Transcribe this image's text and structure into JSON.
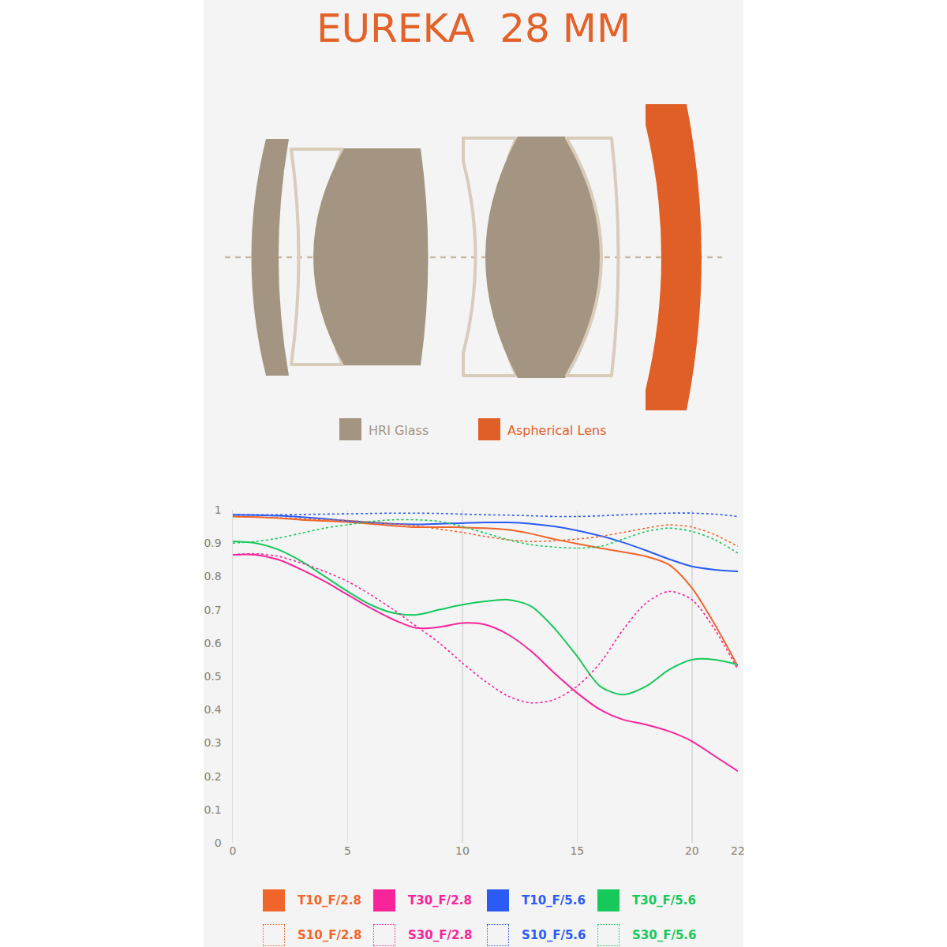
{
  "chart_data": {
    "type": "line",
    "title": "EUREKA  28 MM",
    "x": [
      0,
      1,
      2,
      3,
      4,
      5,
      6,
      7,
      8,
      9,
      10,
      11,
      12,
      13,
      14,
      15,
      16,
      17,
      18,
      19,
      20,
      21,
      22
    ],
    "xlim": [
      0,
      22
    ],
    "xticks": [
      0,
      5,
      10,
      15,
      20,
      22
    ],
    "ylim": [
      0,
      1
    ],
    "yticks": [
      0,
      0.1,
      0.2,
      0.3,
      0.4,
      0.5,
      0.6,
      0.7,
      0.8,
      0.9,
      1
    ],
    "grid": true,
    "series": [
      {
        "name": "T10_F/2.8",
        "color": "#f0652a",
        "line_style": "solid",
        "values": [
          0.98,
          0.978,
          0.975,
          0.97,
          0.967,
          0.963,
          0.958,
          0.952,
          0.948,
          0.948,
          0.947,
          0.945,
          0.94,
          0.928,
          0.912,
          0.898,
          0.885,
          0.873,
          0.86,
          0.835,
          0.765,
          0.655,
          0.53
        ]
      },
      {
        "name": "T30_F/2.8",
        "color": "#f7249a",
        "line_style": "solid",
        "values": [
          0.865,
          0.865,
          0.85,
          0.82,
          0.785,
          0.745,
          0.705,
          0.67,
          0.645,
          0.648,
          0.66,
          0.655,
          0.625,
          0.575,
          0.51,
          0.45,
          0.4,
          0.37,
          0.355,
          0.335,
          0.305,
          0.26,
          0.215
        ]
      },
      {
        "name": "T10_F/5.6",
        "color": "#2b5bf5",
        "line_style": "solid",
        "values": [
          0.985,
          0.984,
          0.982,
          0.978,
          0.973,
          0.967,
          0.962,
          0.958,
          0.956,
          0.958,
          0.96,
          0.962,
          0.962,
          0.958,
          0.95,
          0.938,
          0.922,
          0.902,
          0.878,
          0.852,
          0.83,
          0.82,
          0.815
        ]
      },
      {
        "name": "T30_F/5.6",
        "color": "#16c95a",
        "line_style": "solid",
        "values": [
          0.905,
          0.9,
          0.88,
          0.845,
          0.8,
          0.755,
          0.715,
          0.69,
          0.685,
          0.7,
          0.715,
          0.725,
          0.73,
          0.71,
          0.645,
          0.56,
          0.47,
          0.445,
          0.47,
          0.52,
          0.55,
          0.55,
          0.535
        ]
      },
      {
        "name": "S10_F/2.8",
        "color": "#f0652a",
        "line_style": "dot",
        "values": [
          0.98,
          0.978,
          0.976,
          0.973,
          0.97,
          0.968,
          0.963,
          0.958,
          0.952,
          0.942,
          0.932,
          0.92,
          0.91,
          0.905,
          0.907,
          0.912,
          0.92,
          0.932,
          0.945,
          0.955,
          0.948,
          0.925,
          0.89
        ]
      },
      {
        "name": "S30_F/2.8",
        "color": "#f7249a",
        "line_style": "dot",
        "values": [
          0.865,
          0.868,
          0.86,
          0.84,
          0.815,
          0.785,
          0.745,
          0.7,
          0.65,
          0.6,
          0.54,
          0.485,
          0.44,
          0.42,
          0.43,
          0.47,
          0.54,
          0.64,
          0.72,
          0.755,
          0.73,
          0.64,
          0.52
        ]
      },
      {
        "name": "S10_F/5.6",
        "color": "#2b5bf5",
        "line_style": "dot",
        "values": [
          0.985,
          0.985,
          0.985,
          0.986,
          0.987,
          0.988,
          0.989,
          0.99,
          0.99,
          0.989,
          0.987,
          0.985,
          0.984,
          0.982,
          0.98,
          0.98,
          0.982,
          0.985,
          0.988,
          0.99,
          0.99,
          0.987,
          0.98
        ]
      },
      {
        "name": "S30_F/5.6",
        "color": "#16c95a",
        "line_style": "dot",
        "values": [
          0.9,
          0.905,
          0.915,
          0.93,
          0.945,
          0.955,
          0.965,
          0.97,
          0.97,
          0.965,
          0.95,
          0.93,
          0.91,
          0.895,
          0.888,
          0.885,
          0.89,
          0.912,
          0.935,
          0.945,
          0.935,
          0.91,
          0.87
        ]
      }
    ]
  },
  "diagram": {
    "legend": [
      {
        "label": "HRI Glass",
        "color": "#a39582"
      },
      {
        "label": "Aspherical Lens",
        "color": "#e05f26"
      }
    ]
  }
}
